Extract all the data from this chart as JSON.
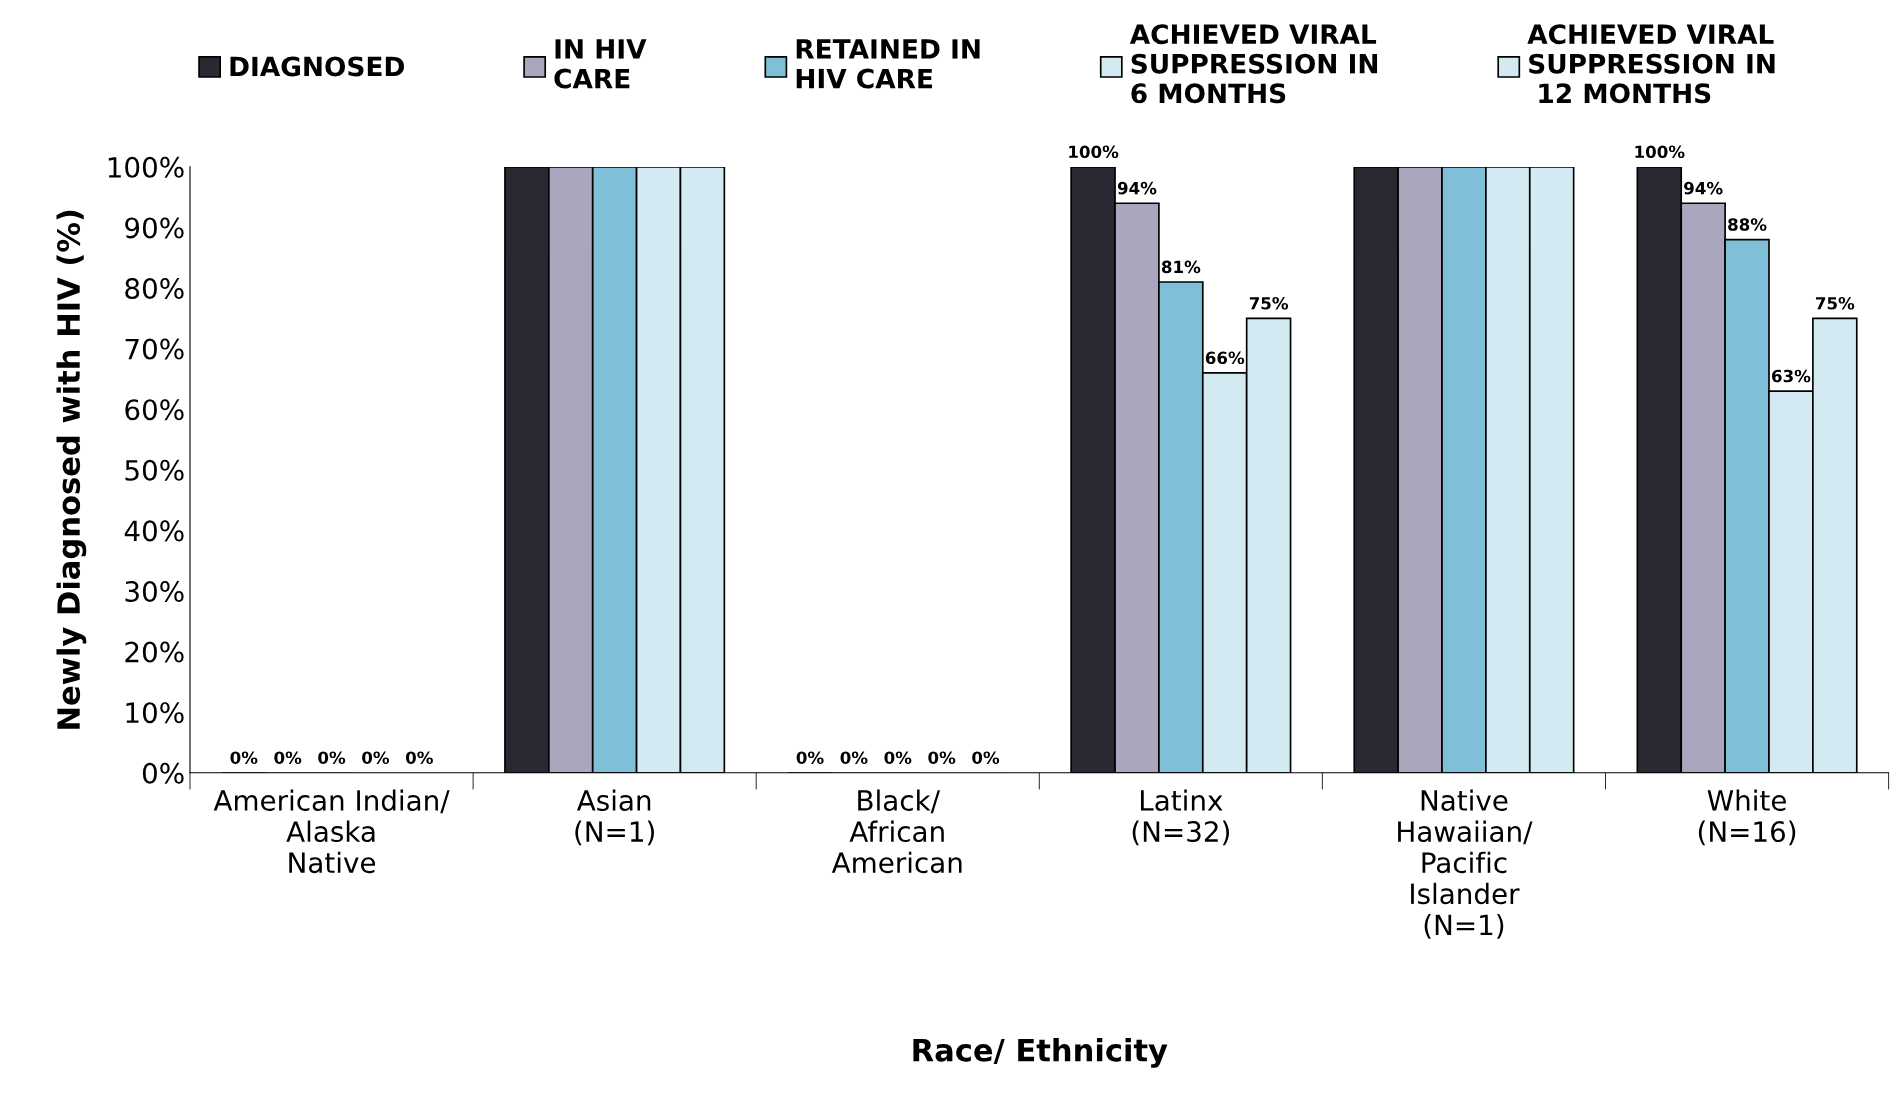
{
  "chart_data": {
    "type": "bar",
    "xlabel": "Race/ Ethnicity",
    "ylabel": "Newly Diagnosed with HIV (%)",
    "categories": [
      "American Indian/\nAlaska\nNative",
      "Asian\n(N=1)",
      "Black/\nAfrican\nAmerican",
      "Latinx\n(N=32)",
      "Native\nHawaiian/\nPacific\nIslander\n(N=1)",
      "White\n(N=16)"
    ],
    "series": [
      {
        "name": "DIAGNOSED",
        "color": "#2a2833",
        "values": [
          0,
          100,
          0,
          100,
          100,
          100
        ],
        "value_labels": [
          "0%",
          null,
          "0%",
          "100%",
          null,
          "100%"
        ]
      },
      {
        "name": "IN HIV\nCARE",
        "color": "#a9a6bd",
        "values": [
          0,
          100,
          0,
          94,
          100,
          94
        ],
        "value_labels": [
          "0%",
          null,
          "0%",
          "94%",
          null,
          "94%"
        ]
      },
      {
        "name": "RETAINED IN\nHIV CARE",
        "color": "#7fc0d8",
        "values": [
          0,
          100,
          0,
          81,
          100,
          88
        ],
        "value_labels": [
          "0%",
          null,
          "0%",
          "81%",
          null,
          "88%"
        ]
      },
      {
        "name": "ACHIEVED VIRAL\nSUPPRESSION IN\n6 MONTHS",
        "color": "#d4eaf2",
        "values": [
          0,
          100,
          0,
          66,
          100,
          63
        ],
        "value_labels": [
          "0%",
          null,
          "0%",
          "66%",
          null,
          "63%"
        ]
      },
      {
        "name": "ACHIEVED VIRAL\nSUPPRESSION IN\n 12 MONTHS",
        "color": "#d4eaf2",
        "values": [
          0,
          100,
          0,
          75,
          100,
          75
        ],
        "value_labels": [
          "0%",
          null,
          "0%",
          "75%",
          null,
          "75%"
        ]
      }
    ],
    "ylim": [
      0,
      100
    ],
    "yticks": [
      {
        "value": 0,
        "label": "0%"
      },
      {
        "value": 10,
        "label": "10%"
      },
      {
        "value": 20,
        "label": "20%"
      },
      {
        "value": 30,
        "label": "30%"
      },
      {
        "value": 40,
        "label": "40%"
      },
      {
        "value": 50,
        "label": "50%"
      },
      {
        "value": 60,
        "label": "60%"
      },
      {
        "value": 70,
        "label": "70%"
      },
      {
        "value": 80,
        "label": "80%"
      },
      {
        "value": 90,
        "label": "90%"
      },
      {
        "value": 100,
        "label": "100%"
      }
    ],
    "grid": false,
    "legend": "top"
  }
}
